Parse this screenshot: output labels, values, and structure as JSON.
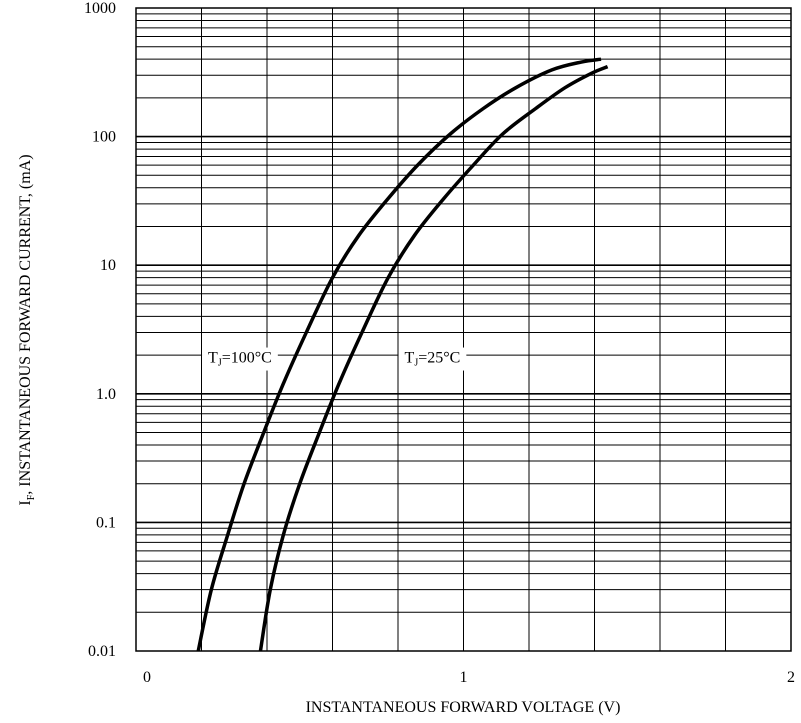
{
  "chart_data": {
    "type": "line",
    "title": "",
    "xlabel": "INSTANTANEOUS FORWARD VOLTAGE (V)",
    "ylabel": {
      "symbol": "I",
      "subscript": "F",
      "text": ", INSTANTANEOUS FORWARD CURRENT, (mA)"
    },
    "xlim": [
      0,
      2
    ],
    "ylim": [
      0.01,
      1000
    ],
    "yscale": "log",
    "grid": true,
    "x_tick_labels": [
      {
        "value": 0,
        "label": "0"
      },
      {
        "value": 1,
        "label": "1"
      },
      {
        "value": 2,
        "label": "2"
      }
    ],
    "y_tick_labels": [
      {
        "value": 0.01,
        "label": "0.01"
      },
      {
        "value": 0.1,
        "label": "0.1"
      },
      {
        "value": 1,
        "label": "1.0"
      },
      {
        "value": 10,
        "label": "10"
      },
      {
        "value": 100,
        "label": "100"
      },
      {
        "value": 1000,
        "label": "1000"
      }
    ],
    "series": [
      {
        "name": "T_J=100°C",
        "x": [
          0.19,
          0.23,
          0.28,
          0.33,
          0.39,
          0.45,
          0.52,
          0.6,
          0.68,
          0.77,
          0.86,
          0.96,
          1.06,
          1.16,
          1.27,
          1.36,
          1.42
        ],
        "y": [
          0.01,
          0.03,
          0.08,
          0.2,
          0.5,
          1.2,
          3,
          8,
          17,
          33,
          60,
          105,
          165,
          240,
          330,
          380,
          400
        ]
      },
      {
        "name": "T_J=25°C",
        "x": [
          0.38,
          0.41,
          0.45,
          0.5,
          0.56,
          0.62,
          0.69,
          0.77,
          0.85,
          0.94,
          1.03,
          1.12,
          1.22,
          1.31,
          1.39,
          1.44
        ],
        "y": [
          0.01,
          0.03,
          0.08,
          0.2,
          0.5,
          1.2,
          3,
          8,
          17,
          33,
          60,
          105,
          165,
          240,
          310,
          350
        ]
      }
    ],
    "annotations": [
      {
        "series": 0,
        "symbol": "T",
        "subscript": "J",
        "text": "=100°C",
        "x": 0.22,
        "y": 1.75
      },
      {
        "series": 1,
        "symbol": "T",
        "subscript": "J",
        "text": "=25°C",
        "x": 0.82,
        "y": 1.75
      }
    ],
    "colors": {
      "line": "#000000",
      "grid": "#000000",
      "background": "#ffffff"
    }
  }
}
